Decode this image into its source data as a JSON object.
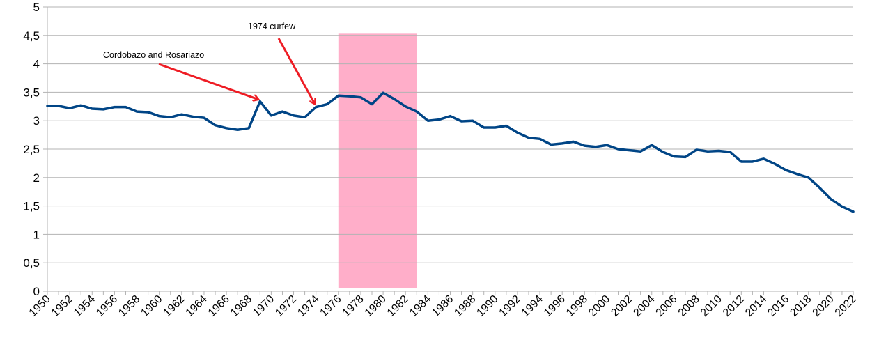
{
  "chart_data": {
    "type": "line",
    "title": "",
    "xlabel": "",
    "ylabel": "",
    "x": [
      1950,
      1951,
      1952,
      1953,
      1954,
      1955,
      1956,
      1957,
      1958,
      1959,
      1960,
      1961,
      1962,
      1963,
      1964,
      1965,
      1966,
      1967,
      1968,
      1969,
      1970,
      1971,
      1972,
      1973,
      1974,
      1975,
      1976,
      1977,
      1978,
      1979,
      1980,
      1981,
      1982,
      1983,
      1984,
      1985,
      1986,
      1987,
      1988,
      1989,
      1990,
      1991,
      1992,
      1993,
      1994,
      1995,
      1996,
      1997,
      1998,
      1999,
      2000,
      2001,
      2002,
      2003,
      2004,
      2005,
      2006,
      2007,
      2008,
      2009,
      2010,
      2011,
      2012,
      2013,
      2014,
      2015,
      2016,
      2017,
      2018,
      2019,
      2020,
      2021,
      2022
    ],
    "series": [
      {
        "name": "",
        "color": "#004586",
        "values": [
          3.26,
          3.26,
          3.22,
          3.27,
          3.21,
          3.2,
          3.24,
          3.24,
          3.16,
          3.15,
          3.08,
          3.06,
          3.11,
          3.07,
          3.05,
          2.92,
          2.87,
          2.84,
          2.87,
          3.34,
          3.09,
          3.16,
          3.09,
          3.06,
          3.24,
          3.29,
          3.44,
          3.43,
          3.41,
          3.29,
          3.49,
          3.38,
          3.25,
          3.16,
          3.0,
          3.02,
          3.08,
          2.99,
          3.0,
          2.88,
          2.88,
          2.91,
          2.79,
          2.7,
          2.68,
          2.58,
          2.6,
          2.63,
          2.56,
          2.54,
          2.57,
          2.5,
          2.48,
          2.46,
          2.57,
          2.45,
          2.37,
          2.36,
          2.49,
          2.46,
          2.47,
          2.45,
          2.28,
          2.28,
          2.33,
          2.24,
          2.13,
          2.06,
          2.0,
          1.82,
          1.62,
          1.49,
          1.4
        ]
      }
    ],
    "ylim": [
      0,
      5
    ],
    "yticks": [
      0,
      0.5,
      1,
      1.5,
      2,
      2.5,
      3,
      3.5,
      4,
      4.5,
      5
    ],
    "ytick_labels": [
      "0",
      "0,5",
      "1",
      "1,5",
      "2",
      "2,5",
      "3",
      "3,5",
      "4",
      "4,5",
      "5"
    ],
    "xticks": [
      1950,
      1952,
      1954,
      1956,
      1958,
      1960,
      1962,
      1964,
      1966,
      1968,
      1970,
      1972,
      1974,
      1976,
      1978,
      1980,
      1982,
      1984,
      1986,
      1988,
      1990,
      1992,
      1994,
      1996,
      1998,
      2000,
      2002,
      2004,
      2006,
      2008,
      2010,
      2012,
      2014,
      2016,
      2018,
      2020,
      2022
    ],
    "grid": true,
    "legend": "none",
    "shaded_region": {
      "x_start": 1976,
      "x_end": 1983,
      "color": "#ffaec9"
    },
    "annotations": [
      {
        "text": "Cordobazo and Rosariazo",
        "target_x": 1969,
        "target_y": 3.34,
        "color": "#ee1c24"
      },
      {
        "text": "1974 curfew",
        "target_x": 1974,
        "target_y": 3.24,
        "color": "#ee1c24"
      }
    ]
  }
}
